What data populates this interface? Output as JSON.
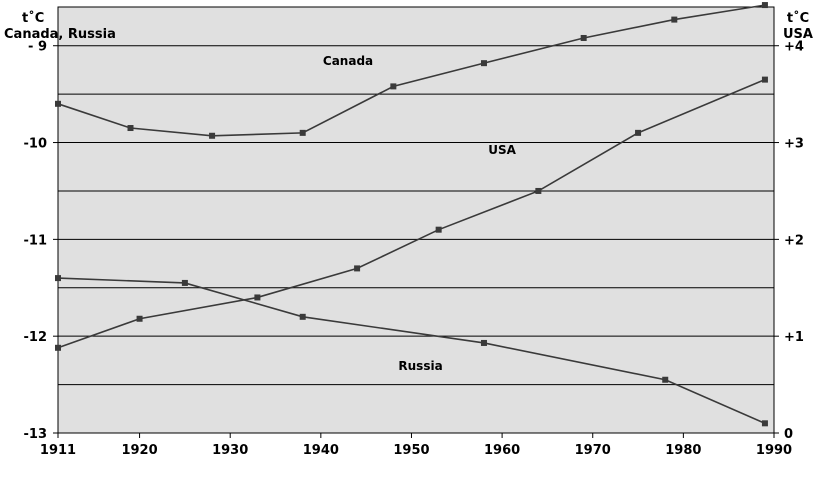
{
  "chart_data": {
    "type": "line",
    "left_axis": {
      "unit_label": "t˚C",
      "label": "Canada, Russia",
      "range": [
        -13,
        -8.6
      ],
      "ticks": [
        {
          "value": -9,
          "label": "- 9"
        },
        {
          "value": -10,
          "label": "-10"
        },
        {
          "value": -11,
          "label": "-11"
        },
        {
          "value": -12,
          "label": "-12"
        },
        {
          "value": -13,
          "label": "-13"
        }
      ]
    },
    "right_axis": {
      "unit_label": "t˚C",
      "label": "USA",
      "range": [
        0,
        4.4
      ],
      "ticks": [
        {
          "value": 4,
          "label": "+4"
        },
        {
          "value": 3,
          "label": "+3"
        },
        {
          "value": 2,
          "label": "+2"
        },
        {
          "value": 1,
          "label": "+1"
        },
        {
          "value": 0,
          "label": "0"
        }
      ]
    },
    "x_axis": {
      "range": [
        1911,
        1990
      ],
      "ticks": [
        1911,
        1920,
        1930,
        1940,
        1950,
        1960,
        1970,
        1980,
        1990
      ]
    },
    "gridlines_left": [
      -9,
      -9.5,
      -10,
      -10.5,
      -11,
      -11.5,
      -12,
      -12.5
    ],
    "plot_background": "#e0e0e0",
    "line_color": "#3a3a3a",
    "series": [
      {
        "name": "Canada",
        "axis": "left",
        "label_at": {
          "x": 1943,
          "y": -9.2
        },
        "points": [
          {
            "x": 1911,
            "y": -9.6
          },
          {
            "x": 1919,
            "y": -9.85
          },
          {
            "x": 1928,
            "y": -9.93
          },
          {
            "x": 1938,
            "y": -9.9
          },
          {
            "x": 1948,
            "y": -9.42
          },
          {
            "x": 1958,
            "y": -9.18
          },
          {
            "x": 1969,
            "y": -8.92
          },
          {
            "x": 1979,
            "y": -8.73
          },
          {
            "x": 1989,
            "y": -8.58
          }
        ]
      },
      {
        "name": "USA",
        "axis": "right",
        "label_at": {
          "x": 1960,
          "y": 2.88
        },
        "points": [
          {
            "x": 1911,
            "y": 0.88
          },
          {
            "x": 1920,
            "y": 1.18
          },
          {
            "x": 1933,
            "y": 1.4
          },
          {
            "x": 1944,
            "y": 1.7
          },
          {
            "x": 1953,
            "y": 2.1
          },
          {
            "x": 1964,
            "y": 2.5
          },
          {
            "x": 1975,
            "y": 3.1
          },
          {
            "x": 1989,
            "y": 3.65
          }
        ]
      },
      {
        "name": "Russia",
        "axis": "left",
        "label_at": {
          "x": 1951,
          "y": -12.35
        },
        "points": [
          {
            "x": 1911,
            "y": -11.4
          },
          {
            "x": 1925,
            "y": -11.45
          },
          {
            "x": 1938,
            "y": -11.8
          },
          {
            "x": 1958,
            "y": -12.07
          },
          {
            "x": 1978,
            "y": -12.45
          },
          {
            "x": 1989,
            "y": -12.9
          }
        ]
      }
    ]
  }
}
